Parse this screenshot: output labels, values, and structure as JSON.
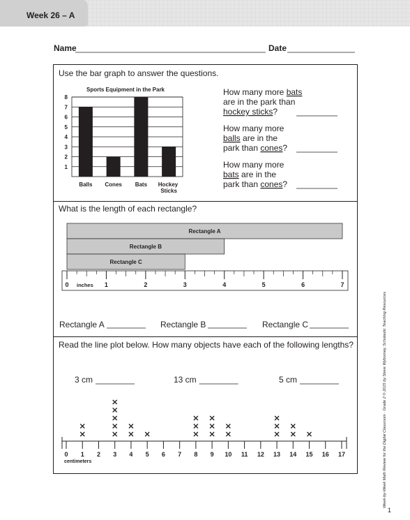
{
  "header": {
    "tab": "Week 26 – A",
    "name_label": "Name",
    "date_label": "Date"
  },
  "sections": [
    {
      "instruction": "Use the bar graph to answer the questions.",
      "questions": [
        [
          [
            {
              "text": "How many more "
            },
            {
              "text": "bats",
              "underline": true
            }
          ],
          [
            {
              "text": "are in the park than"
            }
          ],
          [
            {
              "text": "hockey sticks",
              "underline": true
            },
            {
              "text": "?"
            }
          ]
        ],
        [
          [
            {
              "text": "How many more"
            }
          ],
          [
            {
              "text": "balls",
              "underline": true
            },
            {
              "text": " are in the"
            }
          ],
          [
            {
              "text": "park than "
            },
            {
              "text": "cones",
              "underline": true
            },
            {
              "text": "?"
            }
          ]
        ],
        [
          [
            {
              "text": "How many more"
            }
          ],
          [
            {
              "text": "bats",
              "underline": true
            },
            {
              "text": " are in the"
            }
          ],
          [
            {
              "text": "park than "
            },
            {
              "text": "cones",
              "underline": true
            },
            {
              "text": "?"
            }
          ]
        ]
      ]
    },
    {
      "instruction": "What is the length of each rectangle?"
    },
    {
      "instruction": "Read the line plot below. How many objects have each of the following lengths?",
      "questions": [
        "3 cm",
        "13 cm",
        "5 cm"
      ]
    }
  ],
  "chart_data": [
    {
      "type": "bar",
      "title": "Sports Equipment in the Park",
      "categories": [
        "Balls",
        "Cones",
        "Bats",
        "Hockey Sticks"
      ],
      "values": [
        7,
        2,
        8,
        3
      ],
      "color": "#231f20",
      "ylim": [
        0,
        8
      ],
      "yticks": [
        1,
        2,
        3,
        4,
        5,
        6,
        7,
        8
      ],
      "grid": true
    },
    {
      "type": "barh",
      "categories": [
        "Rectangle A",
        "Rectangle B",
        "Rectangle C"
      ],
      "values": [
        7,
        4,
        3
      ],
      "color": "#c9c9c9",
      "x_label": "inches",
      "xlim": [
        0,
        7
      ],
      "xticks": [
        0,
        1,
        2,
        3,
        4,
        5,
        6,
        7
      ]
    },
    {
      "type": "dot",
      "x_label": "centimeters",
      "x": [
        1,
        3,
        4,
        5,
        8,
        9,
        10,
        13,
        14,
        15
      ],
      "values": [
        2,
        5,
        2,
        1,
        3,
        3,
        2,
        3,
        2,
        1
      ],
      "xlim": [
        0,
        17
      ],
      "xticks": [
        0,
        1,
        2,
        3,
        4,
        5,
        6,
        7,
        8,
        9,
        10,
        11,
        12,
        13,
        14,
        15,
        16,
        17
      ]
    }
  ],
  "footer": {
    "credit": "Week-by-Week Math Review for the Digital Classroom · Grade 2 © 2015 by Steve Wyborney, Scholastic Teaching Resources",
    "page": "1"
  }
}
